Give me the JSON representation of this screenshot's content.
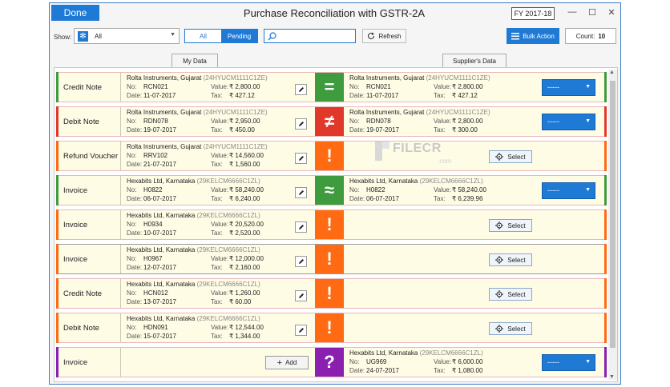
{
  "header": {
    "done_label": "Done",
    "title": "Purchase Reconciliation with GSTR-2A",
    "fy_label": "FY 2017-18",
    "minimize": "—",
    "maximize": "☐",
    "close": "✕"
  },
  "toolbar": {
    "show_label": "Show:",
    "show_value": "All",
    "seg_all": "All",
    "seg_pending": "Pending",
    "search_value": "",
    "refresh_label": "Refresh",
    "bulk_label": "Bulk Action",
    "count_label": "Count:",
    "count_value": "10"
  },
  "tabs": {
    "my_data": "My Data",
    "supplier_data": "Supplier's Data"
  },
  "labels": {
    "no": "No:",
    "date": "Date:",
    "value": "Value:",
    "tax": "Tax:",
    "select": "Select",
    "add": "Add",
    "dropdown_value": "-----"
  },
  "colors": {
    "accent": "#1f7ad6",
    "green": "#3e9b3e",
    "red": "#e0392b",
    "orange": "#ff6a13",
    "purple": "#8a1fb0"
  },
  "watermark": {
    "text": "FILECR",
    "sub": ".com"
  },
  "rows": [
    {
      "type": "Credit Note",
      "status": "=",
      "status_meaning": "matched",
      "status_color": "#3e9b3e",
      "mine": {
        "party": "Rolta Instruments, Gujarat ",
        "gstin": "(24HYUCM1111C1ZE)",
        "no": "RCN021",
        "date": "11-07-2017",
        "value": "₹ 2,800.00",
        "tax": "₹ 427.12"
      },
      "supplier": {
        "party": "Rolta Instruments, Gujarat ",
        "gstin": "(24HYUCM1111C1ZE)",
        "no": "RCN021",
        "date": "11-07-2017",
        "value": "₹ 2,800.00",
        "tax": "₹ 427.12"
      },
      "action": "dropdown"
    },
    {
      "type": "Debit Note",
      "status": "≠",
      "status_meaning": "mismatch",
      "status_color": "#e0392b",
      "mine": {
        "party": "Rolta Instruments, Gujarat ",
        "gstin": "(24HYUCM1111C1ZE)",
        "no": "RDN078",
        "date": "19-07-2017",
        "value": "₹ 2,950.00",
        "tax": "₹ 450.00"
      },
      "supplier": {
        "party": "Rolta Instruments, Gujarat ",
        "gstin": "(24HYUCM1111C1ZE)",
        "no": "RDN078",
        "date": "19-07-2017",
        "value": "₹ 2,800.00",
        "tax": "₹ 300.00"
      },
      "action": "dropdown"
    },
    {
      "type": "Refund Voucher",
      "status": "!",
      "status_meaning": "missing",
      "status_color": "#ff6a13",
      "mine": {
        "party": "Rolta Instruments, Gujarat ",
        "gstin": "(24HYUCM1111C1ZE)",
        "no": "RRV102",
        "date": "21-07-2017",
        "value": "₹ 14,560.00",
        "tax": "₹ 1,560.00"
      },
      "supplier": null,
      "action": "select"
    },
    {
      "type": "Invoice",
      "status": "≈",
      "status_meaning": "approximate",
      "status_color": "#3e9b3e",
      "mine": {
        "party": "Hexabits Ltd, Karnataka ",
        "gstin": "(29KELCM6666C1ZL)",
        "no": "H0822",
        "date": "06-07-2017",
        "value": "₹ 58,240.00",
        "tax": "₹ 6,240.00"
      },
      "supplier": {
        "party": "Hexabits Ltd, Karnataka ",
        "gstin": "(29KELCM6666C1ZL)",
        "no": "H0822",
        "date": "06-07-2017",
        "value": "₹ 58,240.00",
        "tax": "₹ 6,239.96"
      },
      "action": "dropdown"
    },
    {
      "type": "Invoice",
      "status": "!",
      "status_meaning": "missing",
      "status_color": "#ff6a13",
      "mine": {
        "party": "Hexabits Ltd, Karnataka ",
        "gstin": "(29KELCM6666C1ZL)",
        "no": "H0934",
        "date": "10-07-2017",
        "value": "₹ 20,520.00",
        "tax": "₹ 2,520.00"
      },
      "supplier": null,
      "action": "select"
    },
    {
      "type": "Invoice",
      "status": "!",
      "status_meaning": "missing",
      "status_color": "#ff6a13",
      "selected": true,
      "mine": {
        "party": "Hexabits Ltd, Karnataka ",
        "gstin": "(29KELCM6666C1ZL)",
        "no": "H0967",
        "date": "12-07-2017",
        "value": "₹ 12,000.00",
        "tax": "₹ 2,160.00"
      },
      "supplier": null,
      "action": "select"
    },
    {
      "type": "Credit Note",
      "status": "!",
      "status_meaning": "missing",
      "status_color": "#ff6a13",
      "mine": {
        "party": "Hexabits Ltd, Karnataka ",
        "gstin": "(29KELCM6666C1ZL)",
        "no": "HCN012",
        "date": "13-07-2017",
        "value": "₹ 1,260.00",
        "tax": "₹ 60.00"
      },
      "supplier": null,
      "action": "select"
    },
    {
      "type": "Debit Note",
      "status": "!",
      "status_meaning": "missing",
      "status_color": "#ff6a13",
      "mine": {
        "party": "Hexabits Ltd, Karnataka ",
        "gstin": "(29KELCM6666C1ZL)",
        "no": "HDN091",
        "date": "15-07-2017",
        "value": "₹ 12,544.00",
        "tax": "₹ 1,344.00"
      },
      "supplier": null,
      "action": "select"
    },
    {
      "type": "Invoice",
      "status": "?",
      "status_meaning": "unknown",
      "status_color": "#8a1fb0",
      "mine": null,
      "supplier": {
        "party": "Hexabits Ltd, Karnataka ",
        "gstin": "(29KELCM6666C1ZL)",
        "no": "UG969",
        "date": "24-07-2017",
        "value": "₹ 6,000.00",
        "tax": "₹ 1,080.00"
      },
      "action": "dropdown"
    }
  ]
}
